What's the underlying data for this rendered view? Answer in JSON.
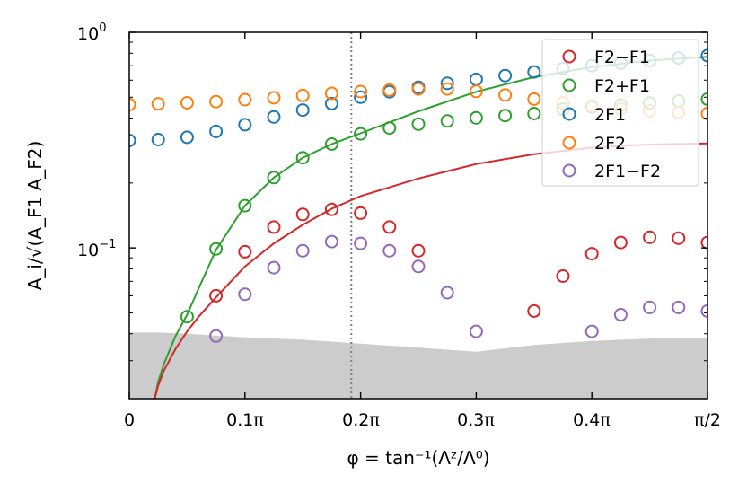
{
  "chart_data": {
    "type": "scatter",
    "xlabel": "φ = tan⁻¹(Λᶻ/Λ⁰)",
    "ylabel": "A_i/√(A_F1 A_F2)",
    "xlim": [
      0,
      0.5
    ],
    "ylim": [
      0.02,
      1.0
    ],
    "y_scale": "log",
    "grid": false,
    "legend_position": "top-right",
    "x_ticks": [
      {
        "value": 0,
        "label": "0"
      },
      {
        "value": 0.1,
        "label": "0.1π"
      },
      {
        "value": 0.2,
        "label": "0.2π"
      },
      {
        "value": 0.3,
        "label": "0.3π"
      },
      {
        "value": 0.4,
        "label": "0.4π"
      },
      {
        "value": 0.5,
        "label": "π/2"
      }
    ],
    "y_ticks": [
      {
        "value": 1.0,
        "base": "10",
        "exp": "0"
      },
      {
        "value": 0.1,
        "base": "10",
        "exp": "−1"
      }
    ],
    "vline_x": 0.192,
    "noise_floor": {
      "color": "#cccccc",
      "x": [
        0,
        0.025,
        0.05,
        0.1,
        0.15,
        0.2,
        0.25,
        0.3,
        0.35,
        0.4,
        0.45,
        0.5
      ],
      "y": [
        0.0405,
        0.0405,
        0.04,
        0.0385,
        0.0375,
        0.036,
        0.0345,
        0.033,
        0.0355,
        0.037,
        0.038,
        0.038
      ]
    },
    "series": [
      {
        "name": "F2−F1",
        "color": "#d62728",
        "x": [
          0.075,
          0.1,
          0.125,
          0.15,
          0.175,
          0.2,
          0.225,
          0.25,
          0.35,
          0.375,
          0.4,
          0.425,
          0.45,
          0.475,
          0.5
        ],
        "y": [
          0.06,
          0.096,
          0.125,
          0.143,
          0.151,
          0.145,
          0.125,
          0.097,
          0.051,
          0.074,
          0.094,
          0.106,
          0.112,
          0.111,
          0.106
        ]
      },
      {
        "name": "F2+F1",
        "color": "#2ca02c",
        "x": [
          0.05,
          0.075,
          0.1,
          0.125,
          0.15,
          0.175,
          0.2,
          0.225,
          0.25,
          0.275,
          0.3,
          0.325,
          0.35,
          0.375,
          0.4,
          0.425,
          0.45,
          0.475,
          0.5
        ],
        "y": [
          0.048,
          0.099,
          0.157,
          0.212,
          0.262,
          0.303,
          0.338,
          0.36,
          0.375,
          0.388,
          0.401,
          0.411,
          0.42,
          0.44,
          0.45,
          0.46,
          0.47,
          0.48,
          0.49
        ]
      },
      {
        "name": "2F1",
        "color": "#1f77b4",
        "x": [
          0,
          0.025,
          0.05,
          0.075,
          0.1,
          0.125,
          0.15,
          0.175,
          0.2,
          0.225,
          0.25,
          0.275,
          0.3,
          0.325,
          0.35,
          0.375,
          0.4,
          0.425,
          0.45,
          0.475,
          0.5
        ],
        "y": [
          0.315,
          0.318,
          0.326,
          0.347,
          0.373,
          0.405,
          0.436,
          0.467,
          0.5,
          0.53,
          0.556,
          0.58,
          0.605,
          0.63,
          0.655,
          0.68,
          0.7,
          0.72,
          0.74,
          0.76,
          0.78
        ]
      },
      {
        "name": "2F2",
        "color": "#ff7f0e",
        "x": [
          0,
          0.025,
          0.05,
          0.075,
          0.1,
          0.125,
          0.15,
          0.175,
          0.2,
          0.225,
          0.25,
          0.275,
          0.3,
          0.325,
          0.35,
          0.375,
          0.4,
          0.425,
          0.45,
          0.475,
          0.5
        ],
        "y": [
          0.462,
          0.466,
          0.471,
          0.477,
          0.487,
          0.497,
          0.509,
          0.521,
          0.531,
          0.54,
          0.546,
          0.546,
          0.532,
          0.512,
          0.49,
          0.47,
          0.455,
          0.442,
          0.432,
          0.425,
          0.42
        ]
      },
      {
        "name": "2F1−F2",
        "color": "#9467bd",
        "x": [
          0.075,
          0.1,
          0.125,
          0.15,
          0.175,
          0.2,
          0.225,
          0.25,
          0.275,
          0.3,
          0.4,
          0.425,
          0.45,
          0.475,
          0.5
        ],
        "y": [
          0.039,
          0.061,
          0.081,
          0.097,
          0.107,
          0.105,
          0.097,
          0.082,
          0.062,
          0.041,
          0.041,
          0.049,
          0.053,
          0.053,
          0.051
        ]
      }
    ],
    "curves": [
      {
        "color": "#2ca02c",
        "x": [
          0.022,
          0.025,
          0.03,
          0.04,
          0.05,
          0.06,
          0.075,
          0.1,
          0.125,
          0.15,
          0.175,
          0.2,
          0.25,
          0.3,
          0.35,
          0.4,
          0.45,
          0.5
        ],
        "y": [
          0.02,
          0.024,
          0.029,
          0.039,
          0.049,
          0.065,
          0.098,
          0.157,
          0.212,
          0.262,
          0.303,
          0.34,
          0.43,
          0.53,
          0.62,
          0.69,
          0.74,
          0.77
        ]
      },
      {
        "color": "#d62728",
        "x": [
          0.022,
          0.025,
          0.03,
          0.04,
          0.05,
          0.06,
          0.075,
          0.1,
          0.125,
          0.15,
          0.175,
          0.2,
          0.25,
          0.3,
          0.35,
          0.4,
          0.45,
          0.5
        ],
        "y": [
          0.02,
          0.023,
          0.027,
          0.034,
          0.041,
          0.048,
          0.059,
          0.082,
          0.105,
          0.128,
          0.152,
          0.174,
          0.21,
          0.245,
          0.272,
          0.292,
          0.302,
          0.305
        ]
      }
    ]
  }
}
